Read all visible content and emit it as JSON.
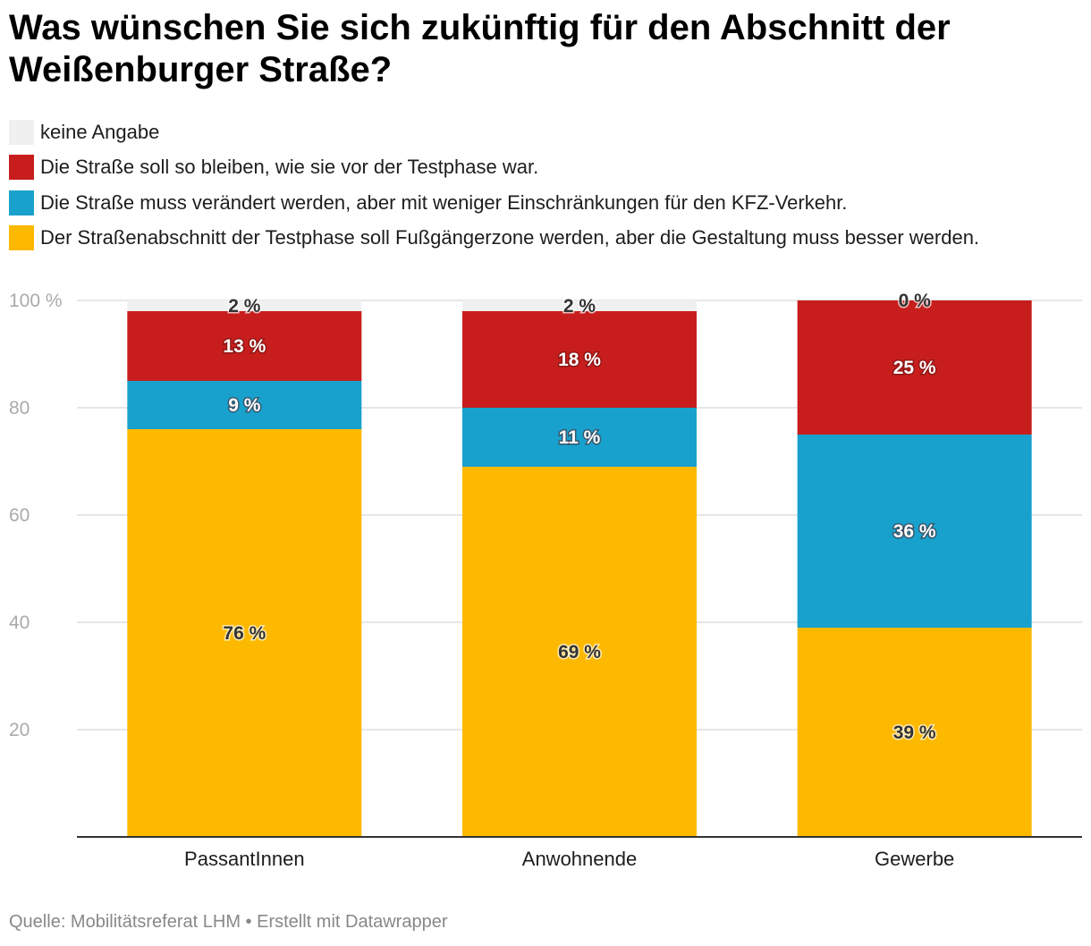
{
  "chart_data": {
    "type": "bar",
    "stacked": true,
    "title": "Was wünschen Sie sich zukünftig für den Abschnitt der Weißenburger Straße?",
    "categories": [
      "PassantInnen",
      "Anwohnende",
      "Gewerbe"
    ],
    "series": [
      {
        "name": "Der Straßenabschnitt der Testphase soll Fußgängerzone werden, aber die Gestaltung muss besser werden.",
        "color": "#fdb900",
        "label_color": "#333333",
        "values": [
          76,
          69,
          39
        ]
      },
      {
        "name": "Die Straße muss verändert werden, aber mit weniger Einschränkungen für den KFZ-Verkehr.",
        "color": "#18a1cd",
        "label_color": "#ffffff",
        "values": [
          9,
          11,
          36
        ]
      },
      {
        "name": "Die Straße soll so bleiben, wie sie vor der Testphase war.",
        "color": "#c71e1d",
        "label_color": "#ffffff",
        "values": [
          13,
          18,
          25
        ]
      },
      {
        "name": "keine Angabe",
        "color": "#f0f0f0",
        "label_color": "#333333",
        "values": [
          2,
          2,
          0
        ]
      }
    ],
    "legend_order": [
      3,
      2,
      1,
      0
    ],
    "value_suffix": " %",
    "ylim": [
      0,
      100
    ],
    "yticks": [
      20,
      40,
      60,
      80,
      100
    ],
    "ytick_labels": [
      "20",
      "40",
      "60",
      "80",
      "100 %"
    ],
    "grid": true,
    "legend_placement": "top-left"
  },
  "footer": "Quelle: Mobilitätsreferat LHM • Erstellt mit Datawrapper"
}
